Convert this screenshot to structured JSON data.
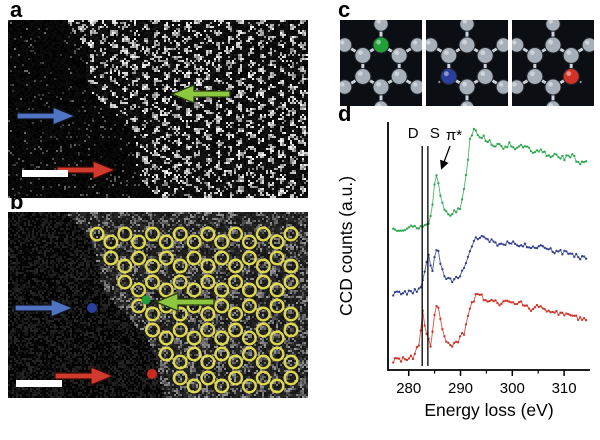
{
  "figure": {
    "panel_labels": {
      "a": "a",
      "b": "b",
      "c": "c",
      "d": "d"
    },
    "arrow_colors": {
      "blue": "#4f74c4",
      "green": "#8dc63f",
      "red": "#d23a2e"
    },
    "overlay": {
      "ring_color": "#e6e04e"
    },
    "dots": {
      "blue": "#2b3f9e",
      "green": "#1f9d3a",
      "red": "#cc2a22"
    },
    "panel_c": {
      "atom_color": "#a7afb8",
      "bond_color": "#ccd3da",
      "highlights": [
        "#21a038",
        "#2b3f9e",
        "#d23326"
      ]
    }
  },
  "chart_data": {
    "type": "line",
    "title": "",
    "xlabel": "Energy loss (eV)",
    "ylabel": "CCD counts (a.u.)",
    "xlim": [
      276,
      315
    ],
    "xticks": [
      280,
      290,
      300,
      310
    ],
    "minor_ticks": [
      285,
      295,
      305
    ],
    "grid": false,
    "legend": "none",
    "noise": 0.025,
    "annotations": {
      "vlines": [
        {
          "label": "D",
          "x": 282.6
        },
        {
          "label": "S",
          "x": 283.7
        }
      ],
      "arrow_label": "π*",
      "arrow_x": 285.8
    },
    "series": [
      {
        "name": "green-spectrum",
        "color": "#2ea84f",
        "offset": 0.56,
        "scale": 0.42,
        "points": [
          [
            277,
            0.02
          ],
          [
            279,
            0.03
          ],
          [
            281,
            0.035
          ],
          [
            282.5,
            0.045
          ],
          [
            283.6,
            0.06
          ],
          [
            284.4,
            0.16
          ],
          [
            285.0,
            0.45
          ],
          [
            285.5,
            0.58
          ],
          [
            286.1,
            0.33
          ],
          [
            287,
            0.21
          ],
          [
            288,
            0.17
          ],
          [
            289,
            0.18
          ],
          [
            290,
            0.23
          ],
          [
            291,
            0.5
          ],
          [
            291.8,
            0.88
          ],
          [
            292.6,
            1.0
          ],
          [
            293.6,
            0.92
          ],
          [
            295,
            0.88
          ],
          [
            296.5,
            0.83
          ],
          [
            298,
            0.8
          ],
          [
            299.5,
            0.84
          ],
          [
            301,
            0.79
          ],
          [
            302.5,
            0.82
          ],
          [
            304,
            0.74
          ],
          [
            305.5,
            0.77
          ],
          [
            307,
            0.72
          ],
          [
            308.5,
            0.74
          ],
          [
            310,
            0.7
          ],
          [
            311.5,
            0.72
          ],
          [
            313,
            0.66
          ],
          [
            314.5,
            0.68
          ]
        ]
      },
      {
        "name": "blue-spectrum",
        "color": "#33408f",
        "offset": 0.3,
        "scale": 0.4,
        "points": [
          [
            277,
            0.02
          ],
          [
            279,
            0.03
          ],
          [
            281,
            0.04
          ],
          [
            282.4,
            0.06
          ],
          [
            283.2,
            0.28
          ],
          [
            283.8,
            0.44
          ],
          [
            284.5,
            0.2
          ],
          [
            285.1,
            0.42
          ],
          [
            285.6,
            0.48
          ],
          [
            286.2,
            0.3
          ],
          [
            287,
            0.2
          ],
          [
            288,
            0.15
          ],
          [
            289.3,
            0.17
          ],
          [
            290.5,
            0.24
          ],
          [
            291.5,
            0.42
          ],
          [
            292.5,
            0.56
          ],
          [
            293.8,
            0.6
          ],
          [
            295,
            0.57
          ],
          [
            296.5,
            0.54
          ],
          [
            298,
            0.51
          ],
          [
            299.5,
            0.55
          ],
          [
            301,
            0.5
          ],
          [
            302.5,
            0.52
          ],
          [
            304,
            0.47
          ],
          [
            305.5,
            0.49
          ],
          [
            307,
            0.46
          ],
          [
            308.5,
            0.44
          ],
          [
            310,
            0.43
          ],
          [
            311.5,
            0.41
          ],
          [
            313,
            0.39
          ],
          [
            314.5,
            0.38
          ]
        ]
      },
      {
        "name": "red-spectrum",
        "color": "#cc3327",
        "offset": 0.03,
        "scale": 0.42,
        "points": [
          [
            277,
            0.02
          ],
          [
            279,
            0.03
          ],
          [
            281,
            0.05
          ],
          [
            282.0,
            0.18
          ],
          [
            282.7,
            0.5
          ],
          [
            283.3,
            0.3
          ],
          [
            284.2,
            0.17
          ],
          [
            285.1,
            0.5
          ],
          [
            285.7,
            0.56
          ],
          [
            286.4,
            0.32
          ],
          [
            287.2,
            0.22
          ],
          [
            288.2,
            0.17
          ],
          [
            289.5,
            0.2
          ],
          [
            290.8,
            0.3
          ],
          [
            292,
            0.55
          ],
          [
            293.2,
            0.66
          ],
          [
            294.5,
            0.62
          ],
          [
            296,
            0.6
          ],
          [
            297.5,
            0.56
          ],
          [
            299,
            0.6
          ],
          [
            300.5,
            0.55
          ],
          [
            302,
            0.57
          ],
          [
            303.5,
            0.52
          ],
          [
            305,
            0.54
          ],
          [
            306.5,
            0.5
          ],
          [
            308,
            0.48
          ],
          [
            309.5,
            0.46
          ],
          [
            311,
            0.44
          ],
          [
            312.5,
            0.43
          ],
          [
            314.5,
            0.41
          ]
        ]
      }
    ]
  }
}
